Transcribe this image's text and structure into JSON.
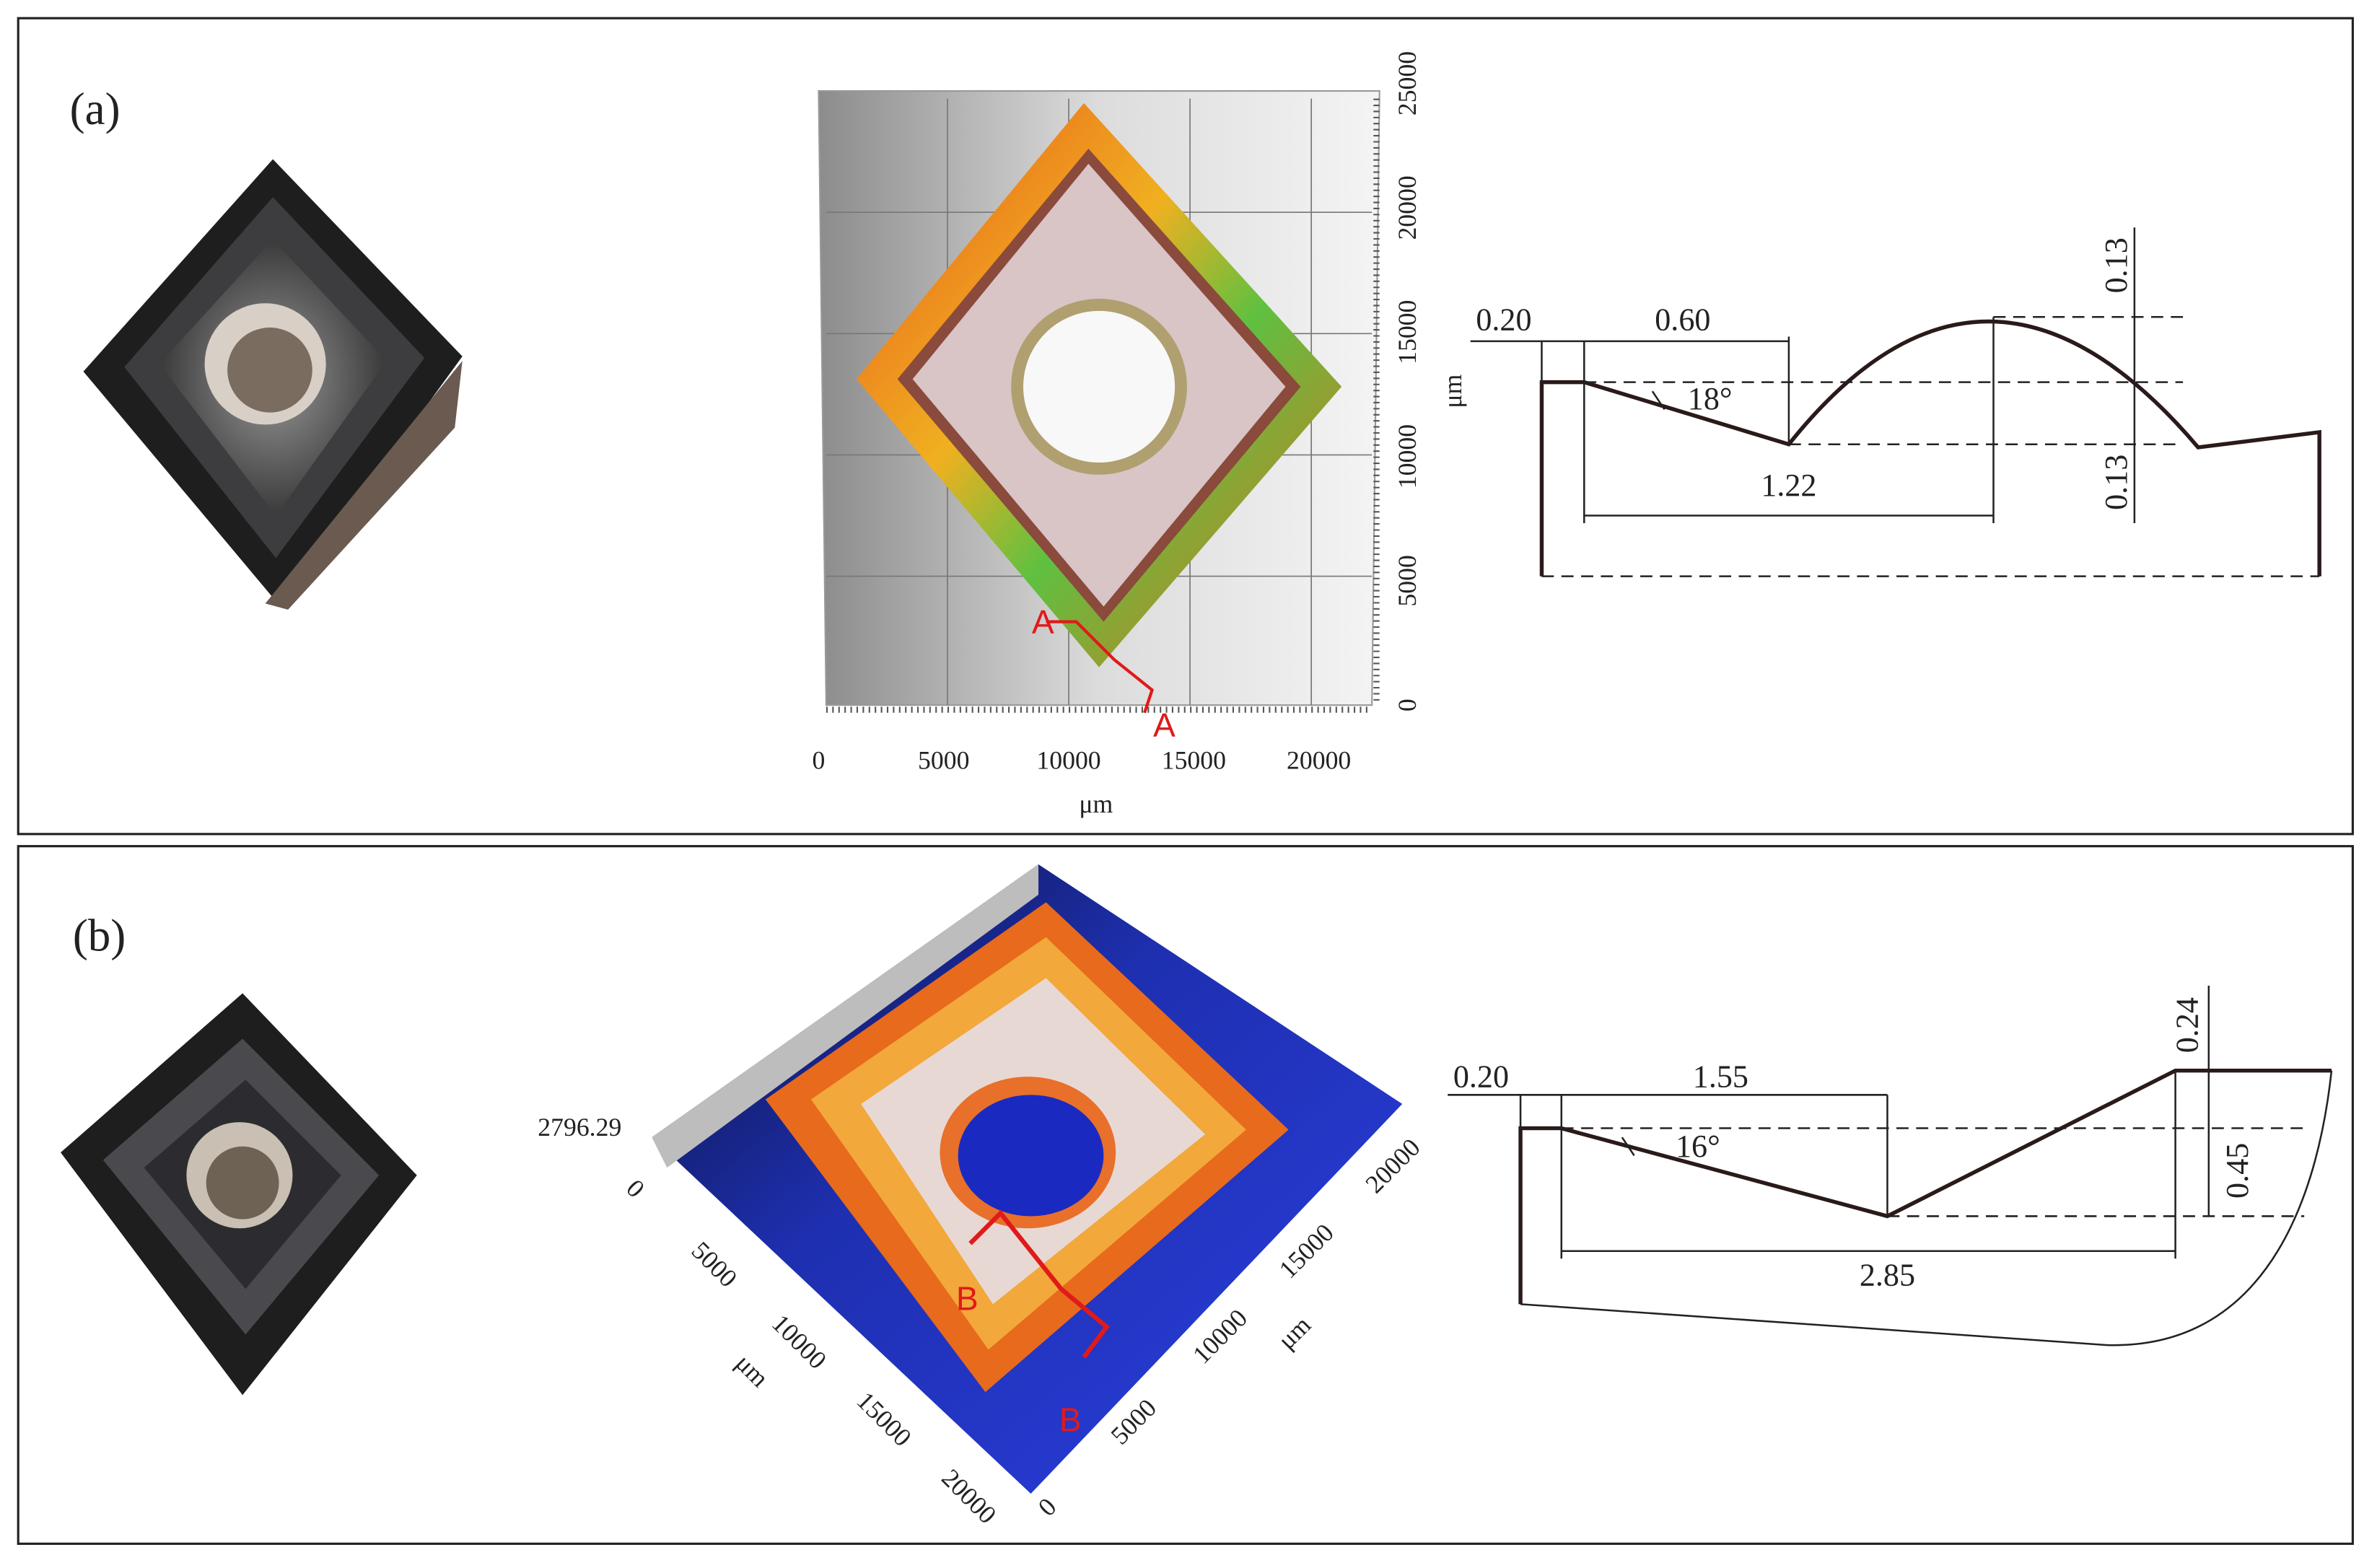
{
  "panels": [
    {
      "label": "(a)",
      "surface": {
        "yticks": [
          "0",
          "5000",
          "10000",
          "15000",
          "20000",
          "25000"
        ],
        "xticks": [
          "0",
          "5000",
          "10000",
          "15000",
          "20000"
        ],
        "xunit": "μm",
        "yunit": "μm",
        "section": [
          "A",
          "A"
        ]
      },
      "profile": {
        "dims": [
          "0.20",
          "0.60",
          "18°",
          "1.22",
          "0.13",
          "0.13"
        ]
      }
    },
    {
      "label": "(b)",
      "surface": {
        "zmax": "2796.29",
        "origin": "0",
        "xticks": [
          "5000",
          "10000",
          "15000",
          "20000"
        ],
        "xunit": "μm",
        "yticks": [
          "0",
          "5000",
          "10000",
          "15000",
          "20000"
        ],
        "yunit": "μm",
        "section": [
          "B",
          "B"
        ]
      },
      "profile": {
        "dims": [
          "0.20",
          "1.55",
          "16°",
          "2.85",
          "0.24",
          "0.45"
        ]
      }
    }
  ]
}
